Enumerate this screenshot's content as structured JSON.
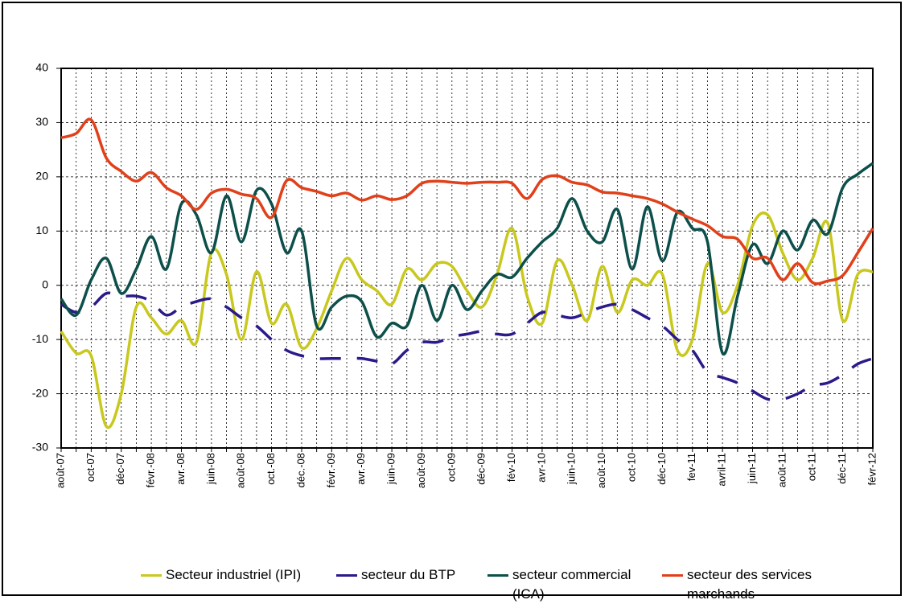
{
  "chart_data": {
    "type": "line",
    "categories": [
      "août-07",
      null,
      "oct-07",
      null,
      "déc-07",
      null,
      "févr.-08",
      null,
      "avr.-08",
      null,
      "juin-08",
      null,
      "août-08",
      null,
      "oct.-08",
      null,
      "déc.-08",
      null,
      "févr.-09",
      null,
      "avr.-09",
      null,
      "juin-09",
      null,
      "août-09",
      null,
      "oct-09",
      null,
      "déc-09",
      null,
      "fév-10",
      null,
      "avr-10",
      null,
      "juin-10",
      null,
      "août-10",
      null,
      "oct-10",
      null,
      "déc-10",
      null,
      "fev-11",
      null,
      "avril-11",
      null,
      "juin-11",
      null,
      "août-11",
      null,
      "oct-11",
      null,
      "déc-11",
      null,
      "févr-12"
    ],
    "series": [
      {
        "name": "Secteur industriel (IPI)",
        "color": "#c8c81e",
        "values": [
          -8.5,
          -12.5,
          -13,
          -26,
          -20,
          -4,
          -6,
          -9,
          -6.5,
          -10.5,
          6,
          2,
          -10,
          2.5,
          -7,
          -3.5,
          -11.5,
          -8,
          -1,
          5,
          1,
          -1,
          -3.5,
          3,
          1,
          4,
          3.5,
          -1,
          -4,
          2,
          10.5,
          -2,
          -7,
          4.5,
          0,
          -6.5,
          3.5,
          -5,
          1,
          0,
          2,
          -12,
          -10,
          4,
          -5,
          0,
          11,
          13,
          6,
          1,
          5,
          11.5,
          -6.5,
          2,
          2.5
        ]
      },
      {
        "name": "secteur du BTP",
        "color": "#2a1a8a",
        "dashed": true,
        "values": [
          -3.5,
          -5,
          -4,
          -1.5,
          -2,
          -2,
          -3,
          -5.5,
          -4,
          -3,
          -2.5,
          -4,
          -6,
          -7.5,
          -10,
          -12,
          -13,
          -13.5,
          -13.5,
          -13.5,
          -13.5,
          -14,
          -14.5,
          -12,
          -10.5,
          -10.5,
          -9.5,
          -9,
          -8.5,
          -9,
          -9,
          -7,
          -5,
          -5.5,
          -6,
          -5,
          -4,
          -3.5,
          -4.5,
          -6,
          -7.5,
          -10,
          -12,
          -16,
          -17,
          -18,
          -19.5,
          -21,
          -21,
          -20,
          -18.5,
          -18,
          -16.5,
          -14.5,
          -13.5
        ]
      },
      {
        "name": "secteur commercial (ICA)",
        "color": "#0d4f4a",
        "values": [
          -2.5,
          -5.5,
          1,
          5,
          -1.5,
          3,
          9,
          3,
          15,
          13,
          6,
          16.5,
          8,
          17.5,
          15,
          6,
          10,
          -7.5,
          -4,
          -2,
          -3,
          -9.5,
          -7,
          -7.5,
          0,
          -6.5,
          0,
          -4.5,
          -1,
          2,
          1.5,
          5,
          8,
          10.5,
          16,
          10,
          8,
          14,
          3,
          14.5,
          4.5,
          13.5,
          10.5,
          8,
          -12.5,
          -2,
          7.5,
          4,
          10,
          6.5,
          12,
          9.5,
          18,
          20.5,
          22.5
        ]
      },
      {
        "name": "secteur des services marchands",
        "color": "#e0401a",
        "values": [
          27.2,
          28,
          30.5,
          23.5,
          21,
          19.2,
          20.8,
          18,
          16.5,
          14,
          17,
          17.7,
          16.8,
          16,
          12.5,
          19.3,
          18,
          17.3,
          16.5,
          17,
          15.7,
          16.5,
          15.8,
          16.5,
          18.8,
          19.2,
          19,
          18.8,
          19,
          19,
          18.8,
          16,
          19.5,
          20.2,
          19,
          18.5,
          17.2,
          17,
          16.5,
          16,
          15,
          13.5,
          12.2,
          11,
          9,
          8.5,
          5,
          5,
          1,
          4,
          0.5,
          0.8,
          1.8,
          6,
          10.5
        ]
      }
    ],
    "ylim": [
      -30,
      40
    ],
    "yticks": [
      -30,
      -20,
      -10,
      0,
      10,
      20,
      30,
      40
    ],
    "grid": true
  }
}
